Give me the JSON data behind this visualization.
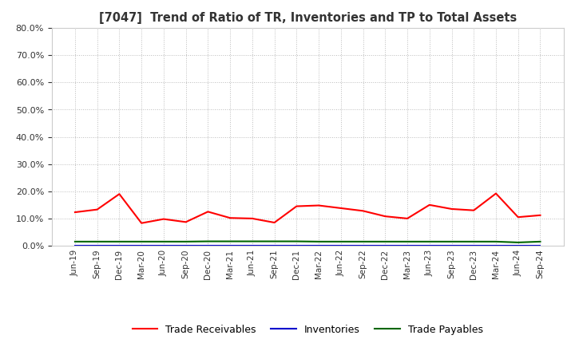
{
  "title": "[7047]  Trend of Ratio of TR, Inventories and TP to Total Assets",
  "x_labels": [
    "Jun-19",
    "Sep-19",
    "Dec-19",
    "Mar-20",
    "Jun-20",
    "Sep-20",
    "Dec-20",
    "Mar-21",
    "Jun-21",
    "Sep-21",
    "Dec-21",
    "Mar-22",
    "Jun-22",
    "Sep-22",
    "Dec-22",
    "Mar-23",
    "Jun-23",
    "Sep-23",
    "Dec-23",
    "Mar-24",
    "Jun-24",
    "Sep-24"
  ],
  "trade_receivables": [
    0.123,
    0.133,
    0.19,
    0.083,
    0.098,
    0.087,
    0.125,
    0.102,
    0.1,
    0.085,
    0.145,
    0.148,
    0.138,
    0.128,
    0.108,
    0.1,
    0.15,
    0.135,
    0.13,
    0.192,
    0.105,
    0.112
  ],
  "inventories": [
    0.001,
    0.001,
    0.001,
    0.001,
    0.001,
    0.001,
    0.001,
    0.001,
    0.001,
    0.001,
    0.001,
    0.001,
    0.001,
    0.001,
    0.001,
    0.001,
    0.001,
    0.001,
    0.001,
    0.001,
    0.001,
    0.001
  ],
  "trade_payables": [
    0.015,
    0.015,
    0.015,
    0.015,
    0.015,
    0.015,
    0.016,
    0.016,
    0.016,
    0.016,
    0.016,
    0.015,
    0.015,
    0.015,
    0.015,
    0.015,
    0.015,
    0.015,
    0.015,
    0.015,
    0.012,
    0.015
  ],
  "tr_color": "#ff0000",
  "inv_color": "#0000cc",
  "tp_color": "#006600",
  "ylim": [
    0.0,
    0.8
  ],
  "yticks": [
    0.0,
    0.1,
    0.2,
    0.3,
    0.4,
    0.5,
    0.6,
    0.7,
    0.8
  ],
  "bg_color": "#ffffff",
  "plot_bg_color": "#ffffff",
  "grid_color": "#bbbbbb",
  "legend_labels": [
    "Trade Receivables",
    "Inventories",
    "Trade Payables"
  ]
}
